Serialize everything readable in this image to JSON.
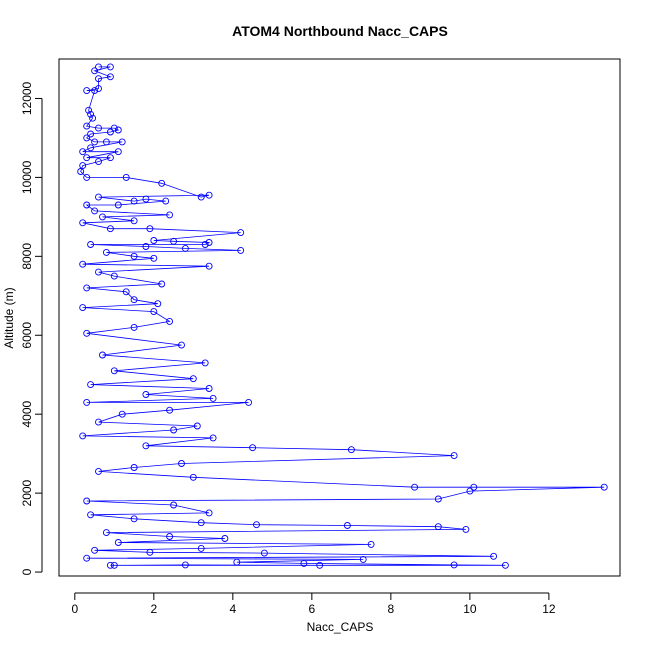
{
  "chart_data": {
    "type": "line",
    "title": "ATOM4 Northbound Nacc_CAPS",
    "xlabel": "Nacc_CAPS",
    "ylabel": "Altitude (m)",
    "xlim": [
      -0.4,
      13.8
    ],
    "ylim": [
      -100,
      13000
    ],
    "x_ticks": [
      0,
      2,
      4,
      6,
      8,
      10,
      12
    ],
    "y_ticks": [
      0,
      2000,
      4000,
      6000,
      8000,
      10000,
      12000
    ],
    "color": "#0000ff",
    "markers": "open circles",
    "series": [
      {
        "values": [
          [
            0.6,
            12800
          ],
          [
            0.9,
            12800
          ],
          [
            0.5,
            12700
          ],
          [
            0.9,
            12550
          ],
          [
            0.6,
            12500
          ],
          [
            0.6,
            12250
          ],
          [
            0.3,
            12200
          ],
          [
            0.5,
            12200
          ],
          [
            0.35,
            11700
          ],
          [
            0.4,
            11600
          ],
          [
            0.45,
            11500
          ],
          [
            0.3,
            11300
          ],
          [
            0.6,
            11250
          ],
          [
            1.0,
            11250
          ],
          [
            1.1,
            11200
          ],
          [
            0.9,
            11150
          ],
          [
            0.4,
            11100
          ],
          [
            0.3,
            11000
          ],
          [
            0.5,
            10900
          ],
          [
            0.8,
            10900
          ],
          [
            1.2,
            10900
          ],
          [
            0.4,
            10750
          ],
          [
            0.2,
            10650
          ],
          [
            1.1,
            10650
          ],
          [
            0.3,
            10500
          ],
          [
            0.9,
            10500
          ],
          [
            0.6,
            10400
          ],
          [
            0.2,
            10300
          ],
          [
            0.15,
            10150
          ],
          [
            0.3,
            10000
          ],
          [
            1.3,
            10000
          ],
          [
            2.2,
            9850
          ],
          [
            3.2,
            9500
          ],
          [
            3.4,
            9550
          ],
          [
            0.6,
            9500
          ],
          [
            1.5,
            9400
          ],
          [
            1.8,
            9450
          ],
          [
            2.3,
            9400
          ],
          [
            1.1,
            9300
          ],
          [
            0.3,
            9300
          ],
          [
            0.5,
            9150
          ],
          [
            2.4,
            9050
          ],
          [
            0.7,
            9000
          ],
          [
            1.5,
            8900
          ],
          [
            0.2,
            8850
          ],
          [
            0.9,
            8700
          ],
          [
            1.9,
            8700
          ],
          [
            4.2,
            8600
          ],
          [
            2.0,
            8400
          ],
          [
            2.5,
            8380
          ],
          [
            3.4,
            8350
          ],
          [
            3.3,
            8300
          ],
          [
            0.4,
            8300
          ],
          [
            1.8,
            8250
          ],
          [
            2.8,
            8200
          ],
          [
            4.2,
            8150
          ],
          [
            0.8,
            8100
          ],
          [
            1.5,
            8000
          ],
          [
            2.0,
            7950
          ],
          [
            0.2,
            7800
          ],
          [
            3.4,
            7750
          ],
          [
            0.6,
            7600
          ],
          [
            1.0,
            7500
          ],
          [
            2.2,
            7300
          ],
          [
            0.3,
            7200
          ],
          [
            1.3,
            7100
          ],
          [
            1.5,
            6900
          ],
          [
            2.1,
            6800
          ],
          [
            0.2,
            6700
          ],
          [
            2.0,
            6600
          ],
          [
            2.4,
            6350
          ],
          [
            1.5,
            6200
          ],
          [
            0.3,
            6050
          ],
          [
            2.7,
            5750
          ],
          [
            0.7,
            5500
          ],
          [
            3.3,
            5300
          ],
          [
            1.0,
            5100
          ],
          [
            3.0,
            4900
          ],
          [
            0.4,
            4750
          ],
          [
            3.4,
            4650
          ],
          [
            1.8,
            4500
          ],
          [
            3.5,
            4400
          ],
          [
            0.3,
            4300
          ],
          [
            4.4,
            4300
          ],
          [
            2.4,
            4100
          ],
          [
            1.2,
            4000
          ],
          [
            0.6,
            3800
          ],
          [
            3.1,
            3700
          ],
          [
            2.5,
            3600
          ],
          [
            0.2,
            3450
          ],
          [
            3.5,
            3400
          ],
          [
            1.8,
            3200
          ],
          [
            4.5,
            3150
          ],
          [
            7.0,
            3100
          ],
          [
            9.6,
            2950
          ],
          [
            2.7,
            2750
          ],
          [
            1.5,
            2650
          ],
          [
            0.6,
            2550
          ],
          [
            3.0,
            2400
          ],
          [
            8.6,
            2150
          ],
          [
            10.1,
            2150
          ],
          [
            13.4,
            2150
          ],
          [
            10.0,
            2050
          ],
          [
            9.2,
            1850
          ],
          [
            0.3,
            1800
          ],
          [
            2.5,
            1700
          ],
          [
            3.4,
            1500
          ],
          [
            0.4,
            1450
          ],
          [
            1.5,
            1350
          ],
          [
            3.2,
            1250
          ],
          [
            4.6,
            1200
          ],
          [
            6.9,
            1180
          ],
          [
            9.2,
            1150
          ],
          [
            9.9,
            1080
          ],
          [
            0.8,
            1000
          ],
          [
            2.4,
            900
          ],
          [
            3.8,
            850
          ],
          [
            1.1,
            750
          ],
          [
            7.5,
            700
          ],
          [
            3.2,
            600
          ],
          [
            0.5,
            550
          ],
          [
            1.9,
            500
          ],
          [
            4.8,
            480
          ],
          [
            10.6,
            400
          ],
          [
            0.3,
            350
          ],
          [
            7.3,
            320
          ],
          [
            4.1,
            250
          ],
          [
            5.8,
            220
          ],
          [
            9.6,
            180
          ],
          [
            10.9,
            170
          ],
          [
            1.0,
            170
          ],
          [
            2.8,
            180
          ],
          [
            6.2,
            170
          ],
          [
            0.9,
            170
          ]
        ]
      }
    ]
  }
}
